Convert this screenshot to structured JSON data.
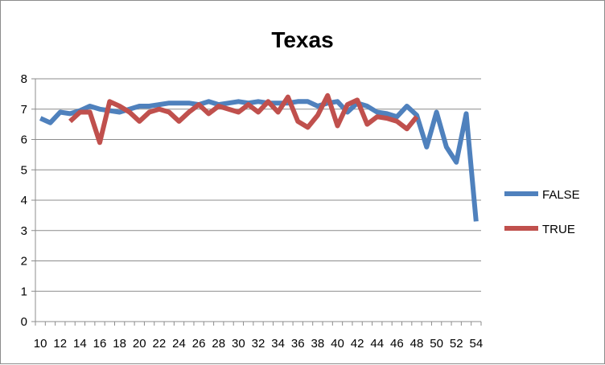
{
  "chart_data": {
    "type": "line",
    "title": "Texas",
    "xlabel": "",
    "ylabel": "",
    "x_tick_labels": [
      10,
      12,
      14,
      16,
      18,
      20,
      22,
      24,
      26,
      28,
      30,
      32,
      34,
      36,
      38,
      40,
      42,
      44,
      46,
      48,
      50,
      52,
      54
    ],
    "y_tick_labels": [
      0,
      1,
      2,
      3,
      4,
      5,
      6,
      7,
      8
    ],
    "xlim": [
      10,
      54
    ],
    "ylim": [
      0,
      8
    ],
    "grid": "horizontal",
    "legend": "right",
    "series": [
      {
        "name": "FALSE",
        "color": "#4f81bd",
        "points": [
          [
            10,
            6.7
          ],
          [
            11,
            6.55
          ],
          [
            12,
            6.9
          ],
          [
            13,
            6.85
          ],
          [
            14,
            6.95
          ],
          [
            15,
            7.1
          ],
          [
            16,
            7.0
          ],
          [
            17,
            6.95
          ],
          [
            18,
            6.9
          ],
          [
            19,
            7.0
          ],
          [
            20,
            7.1
          ],
          [
            21,
            7.1
          ],
          [
            22,
            7.15
          ],
          [
            23,
            7.2
          ],
          [
            24,
            7.2
          ],
          [
            25,
            7.2
          ],
          [
            26,
            7.15
          ],
          [
            27,
            7.25
          ],
          [
            28,
            7.15
          ],
          [
            29,
            7.2
          ],
          [
            30,
            7.25
          ],
          [
            31,
            7.2
          ],
          [
            32,
            7.25
          ],
          [
            33,
            7.2
          ],
          [
            34,
            7.2
          ],
          [
            35,
            7.2
          ],
          [
            36,
            7.25
          ],
          [
            37,
            7.25
          ],
          [
            38,
            7.1
          ],
          [
            39,
            7.2
          ],
          [
            40,
            7.25
          ],
          [
            41,
            6.9
          ],
          [
            42,
            7.2
          ],
          [
            43,
            7.1
          ],
          [
            44,
            6.9
          ],
          [
            45,
            6.85
          ],
          [
            46,
            6.75
          ],
          [
            47,
            7.1
          ],
          [
            48,
            6.8
          ],
          [
            49,
            5.75
          ],
          [
            50,
            6.9
          ],
          [
            51,
            5.75
          ],
          [
            52,
            5.25
          ],
          [
            53,
            6.85
          ],
          [
            54,
            3.3
          ]
        ]
      },
      {
        "name": "TRUE",
        "color": "#c0504d",
        "points": [
          [
            13,
            6.6
          ],
          [
            14,
            6.9
          ],
          [
            15,
            6.9
          ],
          [
            16,
            5.9
          ],
          [
            17,
            7.25
          ],
          [
            18,
            7.1
          ],
          [
            19,
            6.9
          ],
          [
            20,
            6.6
          ],
          [
            21,
            6.9
          ],
          [
            22,
            7.0
          ],
          [
            23,
            6.9
          ],
          [
            24,
            6.6
          ],
          [
            25,
            6.9
          ],
          [
            26,
            7.15
          ],
          [
            27,
            6.85
          ],
          [
            28,
            7.1
          ],
          [
            29,
            7.0
          ],
          [
            30,
            6.9
          ],
          [
            31,
            7.15
          ],
          [
            32,
            6.9
          ],
          [
            33,
            7.25
          ],
          [
            34,
            6.9
          ],
          [
            35,
            7.4
          ],
          [
            36,
            6.6
          ],
          [
            37,
            6.4
          ],
          [
            38,
            6.8
          ],
          [
            39,
            7.45
          ],
          [
            40,
            6.45
          ],
          [
            41,
            7.15
          ],
          [
            42,
            7.3
          ],
          [
            43,
            6.5
          ],
          [
            44,
            6.75
          ],
          [
            45,
            6.7
          ],
          [
            46,
            6.6
          ],
          [
            47,
            6.35
          ],
          [
            48,
            6.75
          ]
        ]
      }
    ]
  }
}
